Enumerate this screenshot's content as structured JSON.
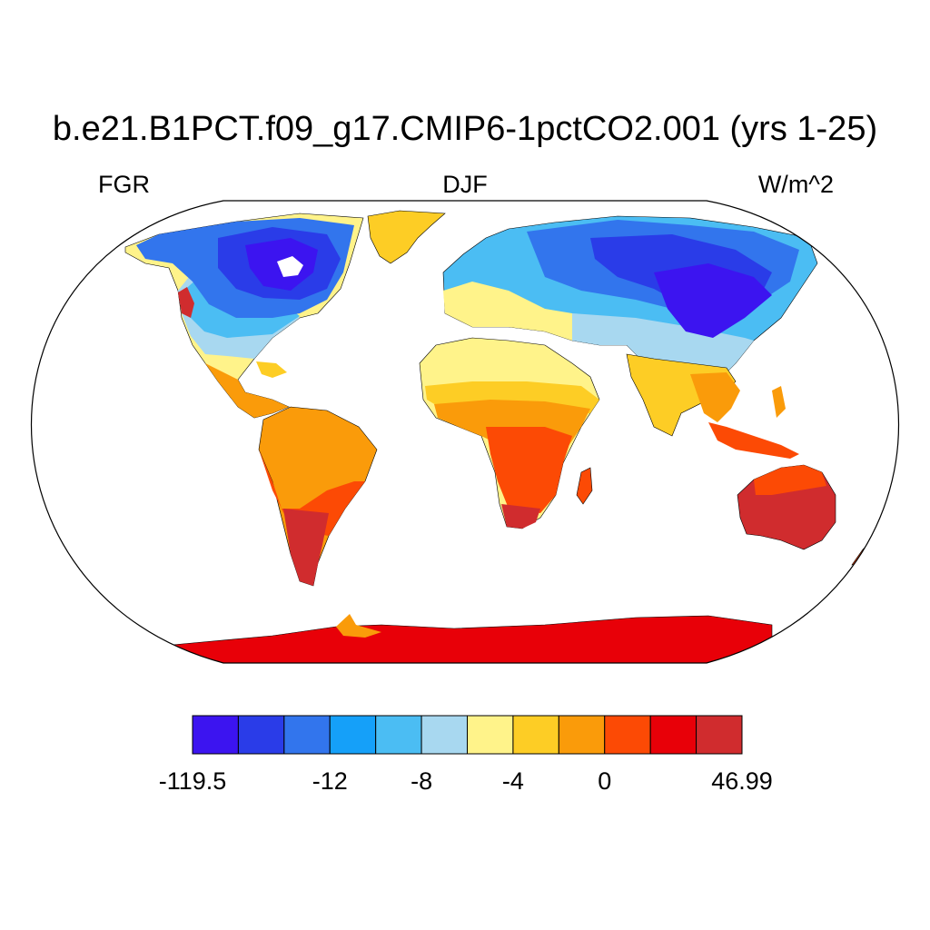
{
  "title": "b.e21.B1PCT.f09_g17.CMIP6-1pctCO2.001 (yrs 1-25)",
  "subtitle_left": "FGR",
  "subtitle_center": "DJF",
  "subtitle_right": "W/m^2",
  "colorbar": {
    "colors": [
      "#3c14f0",
      "#2a3ce8",
      "#3275ed",
      "#15a0f9",
      "#4bbdf3",
      "#a8d8f0",
      "#fff38a",
      "#fdcd25",
      "#fa9b0a",
      "#fc4a05",
      "#e80008",
      "#d02c2e"
    ],
    "labels": [
      {
        "text": "-119.5",
        "boundary": 0
      },
      {
        "text": "-12",
        "boundary": 3
      },
      {
        "text": "-8",
        "boundary": 5
      },
      {
        "text": "-4",
        "boundary": 7
      },
      {
        "text": "0",
        "boundary": 9
      },
      {
        "text": "46.99",
        "boundary": 12
      }
    ]
  }
}
